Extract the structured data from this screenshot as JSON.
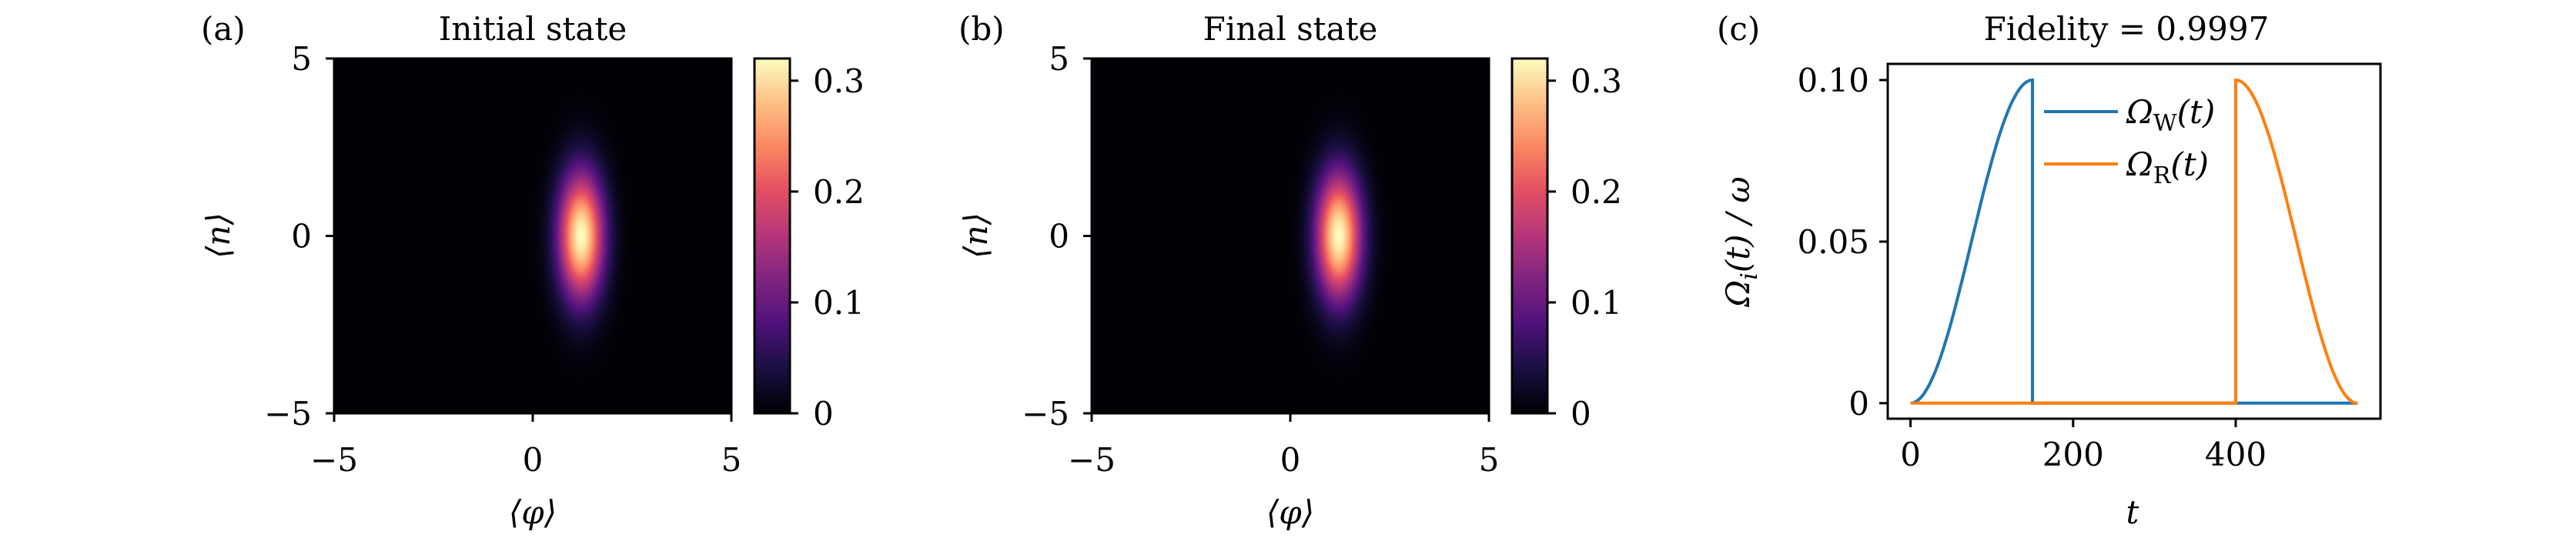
{
  "chart_data": [
    {
      "type": "heatmap",
      "panel_label": "(a)",
      "title": "Initial state",
      "xlabel": "⟨φ⟩",
      "ylabel": "⟨n⟩",
      "xlim": [
        -5,
        5
      ],
      "ylim": [
        -5,
        5
      ],
      "xticks": [
        "−5",
        "0",
        "5"
      ],
      "xtick_values": [
        -5,
        0,
        5
      ],
      "yticks": [
        "−5",
        "0",
        "5"
      ],
      "ytick_values": [
        -5,
        0,
        5
      ],
      "colormap": "magma",
      "colorbar": {
        "range": [
          0,
          0.32
        ],
        "ticks": [
          "0",
          "0.1",
          "0.2",
          "0.3"
        ],
        "tick_values": [
          0,
          0.1,
          0.2,
          0.3
        ]
      },
      "distribution": {
        "shape": "gaussian",
        "center_phi": 1.22,
        "center_n": 0.0,
        "sigma_phi": 0.4,
        "sigma_n": 1.25,
        "peak": 0.32
      }
    },
    {
      "type": "heatmap",
      "panel_label": "(b)",
      "title": "Final state",
      "xlabel": "⟨φ⟩",
      "ylabel": "⟨n⟩",
      "xlim": [
        -5,
        5
      ],
      "ylim": [
        -5,
        5
      ],
      "xticks": [
        "−5",
        "0",
        "5"
      ],
      "xtick_values": [
        -5,
        0,
        5
      ],
      "yticks": [
        "−5",
        "0",
        "5"
      ],
      "ytick_values": [
        -5,
        0,
        5
      ],
      "colormap": "magma",
      "colorbar": {
        "range": [
          0,
          0.32
        ],
        "ticks": [
          "0",
          "0.1",
          "0.2",
          "0.3"
        ],
        "tick_values": [
          0,
          0.1,
          0.2,
          0.3
        ]
      },
      "distribution": {
        "shape": "gaussian",
        "center_phi": 1.22,
        "center_n": 0.0,
        "sigma_phi": 0.4,
        "sigma_n": 1.25,
        "peak": 0.32
      }
    },
    {
      "type": "line",
      "panel_label": "(c)",
      "title": "Fidelity = 0.9997",
      "xlabel": "t",
      "ylabel": {
        "symbol": "Ω",
        "sub": "i",
        "rest": "(t) / ω"
      },
      "xlim": [
        -28,
        578
      ],
      "ylim": [
        -0.0048,
        0.105
      ],
      "xticks": [
        "0",
        "200",
        "400"
      ],
      "xtick_values": [
        0,
        200,
        400
      ],
      "yticks": [
        "0",
        "0.05",
        "0.10"
      ],
      "ytick_values": [
        0,
        0.05,
        0.1
      ],
      "legend_position": "top-center",
      "series": [
        {
          "name": "ΩW(t)",
          "label": {
            "symbol": "Ω",
            "sub": "W",
            "rest": "(t)"
          },
          "color": "#1f77b4",
          "description": "0.1·sin²(πt/300) for 0≤t≤150, then 0 until 550",
          "x": [
            0,
            25,
            50,
            75,
            100,
            125,
            150,
            150,
            400,
            550
          ],
          "y": [
            0,
            0.0067,
            0.025,
            0.05,
            0.075,
            0.0933,
            0.1,
            0,
            0,
            0
          ]
        },
        {
          "name": "ΩR(t)",
          "label": {
            "symbol": "Ω",
            "sub": "R",
            "rest": "(t)"
          },
          "color": "#ff7f0e",
          "description": "0 until 400, then 0.1·cos²(π(t−400)/300) for 400≤t≤550",
          "x": [
            0,
            400,
            400,
            425,
            450,
            475,
            500,
            525,
            550
          ],
          "y": [
            0,
            0,
            0.1,
            0.0933,
            0.075,
            0.05,
            0.025,
            0.0067,
            0
          ]
        }
      ]
    }
  ]
}
